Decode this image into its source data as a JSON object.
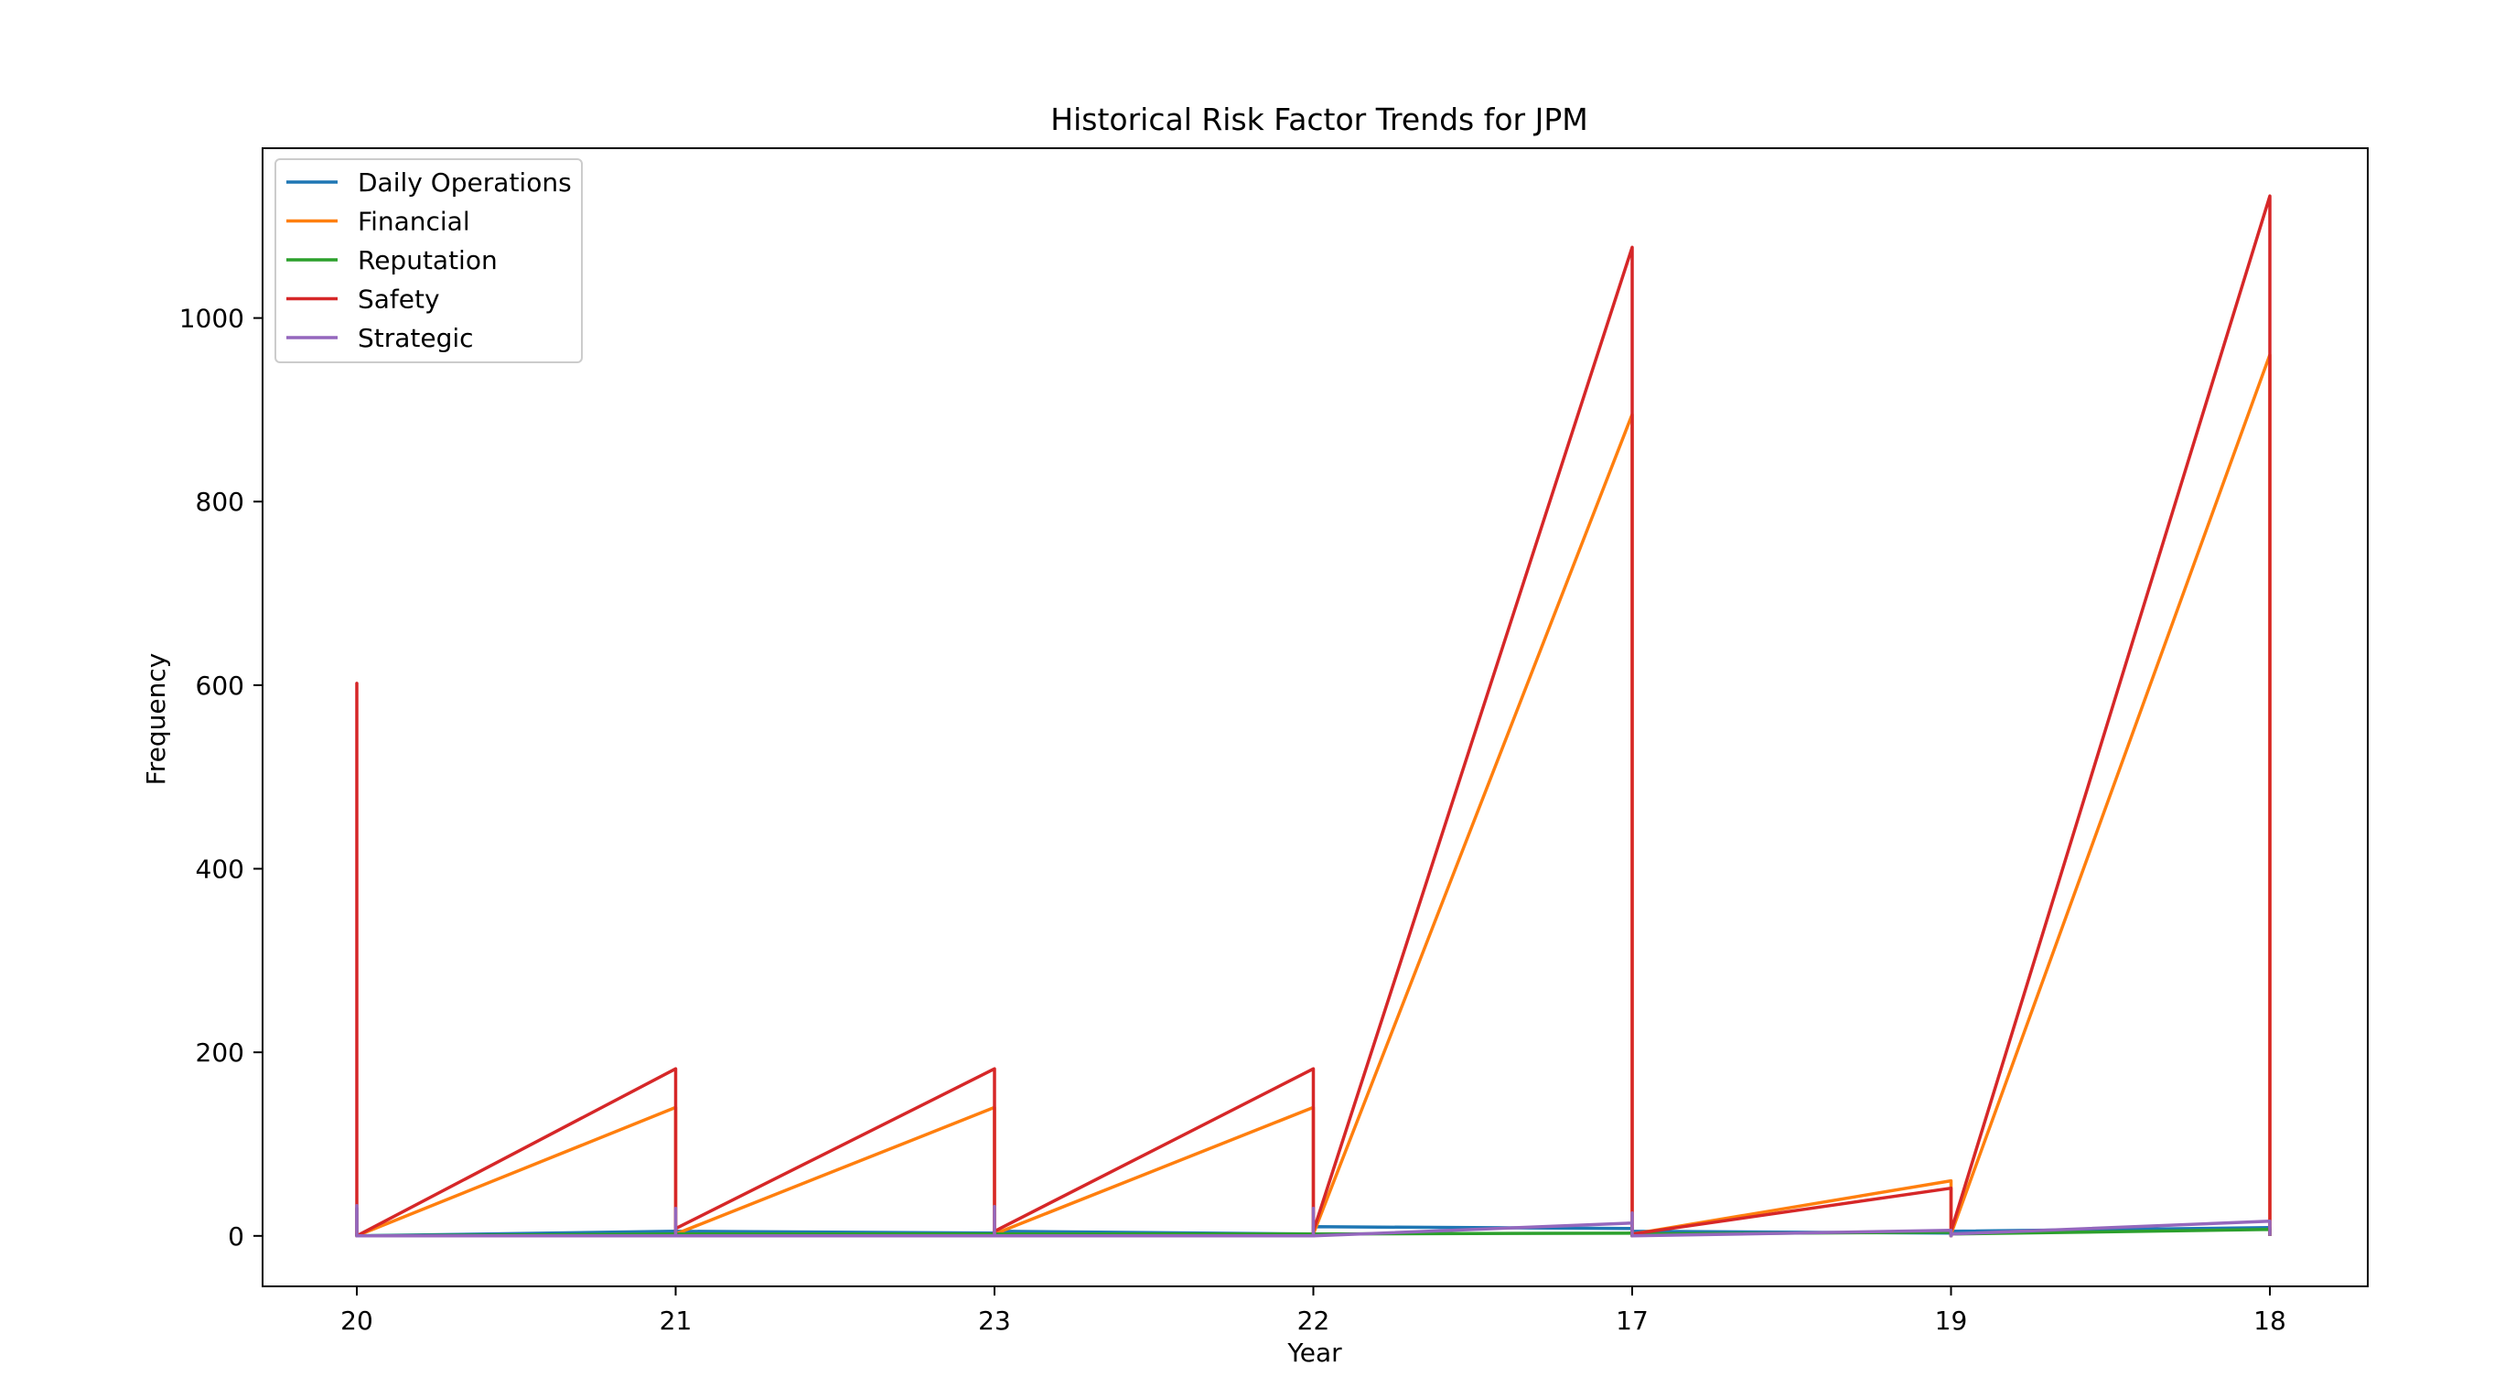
{
  "chart_data": {
    "type": "line",
    "title": "Historical Risk Factor Trends for JPM",
    "xlabel": "Year",
    "ylabel": "Frequency",
    "ylim": [
      -55,
      1185
    ],
    "yticks": [
      0,
      200,
      400,
      600,
      800,
      1000
    ],
    "categories": [
      "20",
      "21",
      "23",
      "22",
      "17",
      "19",
      "18"
    ],
    "legend_position": "top-left",
    "grid": false,
    "series": [
      {
        "name": "Daily Operations",
        "color": "#1f77b4",
        "points": [
          [
            0,
            0
          ],
          [
            0,
            30
          ],
          [
            0,
            0
          ],
          [
            1,
            5
          ],
          [
            1,
            0
          ],
          [
            1,
            5
          ],
          [
            2,
            3
          ],
          [
            2,
            0
          ],
          [
            2,
            5
          ],
          [
            3,
            2
          ],
          [
            3,
            0
          ],
          [
            3,
            10
          ],
          [
            4,
            8
          ],
          [
            4,
            0
          ],
          [
            4,
            5
          ],
          [
            5,
            3
          ],
          [
            5,
            0
          ],
          [
            5,
            5
          ],
          [
            6,
            9
          ],
          [
            6,
            0
          ]
        ]
      },
      {
        "name": "Financial",
        "color": "#ff7f0e",
        "points": [
          [
            0,
            0
          ],
          [
            0,
            5
          ],
          [
            0,
            0
          ],
          [
            1,
            140
          ],
          [
            1,
            0
          ],
          [
            1,
            2
          ],
          [
            2,
            140
          ],
          [
            2,
            0
          ],
          [
            2,
            2
          ],
          [
            3,
            140
          ],
          [
            3,
            0
          ],
          [
            3,
            2
          ],
          [
            4,
            895
          ],
          [
            4,
            0
          ],
          [
            4,
            2
          ],
          [
            5,
            60
          ],
          [
            5,
            0
          ],
          [
            5,
            2
          ],
          [
            6,
            960
          ],
          [
            6,
            0
          ]
        ]
      },
      {
        "name": "Reputation",
        "color": "#2ca02c",
        "points": [
          [
            0,
            0
          ],
          [
            0,
            2
          ],
          [
            0,
            0
          ],
          [
            1,
            2
          ],
          [
            1,
            0
          ],
          [
            1,
            2
          ],
          [
            2,
            2
          ],
          [
            2,
            0
          ],
          [
            2,
            2
          ],
          [
            3,
            2
          ],
          [
            3,
            0
          ],
          [
            3,
            2
          ],
          [
            4,
            3
          ],
          [
            4,
            0
          ],
          [
            4,
            2
          ],
          [
            5,
            4
          ],
          [
            5,
            0
          ],
          [
            5,
            2
          ],
          [
            6,
            7
          ],
          [
            6,
            0
          ]
        ]
      },
      {
        "name": "Safety",
        "color": "#d62728",
        "points": [
          [
            0,
            0
          ],
          [
            0,
            602
          ],
          [
            0,
            0
          ],
          [
            1,
            182
          ],
          [
            1,
            0
          ],
          [
            1,
            8
          ],
          [
            2,
            182
          ],
          [
            2,
            0
          ],
          [
            2,
            5
          ],
          [
            3,
            182
          ],
          [
            3,
            0
          ],
          [
            3,
            5
          ],
          [
            4,
            1077
          ],
          [
            4,
            0
          ],
          [
            4,
            2
          ],
          [
            5,
            52
          ],
          [
            5,
            0
          ],
          [
            5,
            5
          ],
          [
            6,
            1133
          ],
          [
            6,
            0
          ]
        ]
      },
      {
        "name": "Strategic",
        "color": "#9467bd",
        "points": [
          [
            0,
            0
          ],
          [
            0,
            33
          ],
          [
            0,
            0
          ],
          [
            1,
            0
          ],
          [
            1,
            30
          ],
          [
            1,
            0
          ],
          [
            2,
            0
          ],
          [
            2,
            32
          ],
          [
            2,
            0
          ],
          [
            3,
            0
          ],
          [
            3,
            30
          ],
          [
            3,
            0
          ],
          [
            4,
            14
          ],
          [
            4,
            25
          ],
          [
            4,
            0
          ],
          [
            5,
            6
          ],
          [
            5,
            0
          ],
          [
            5,
            2
          ],
          [
            6,
            16
          ],
          [
            6,
            0
          ]
        ]
      }
    ]
  }
}
